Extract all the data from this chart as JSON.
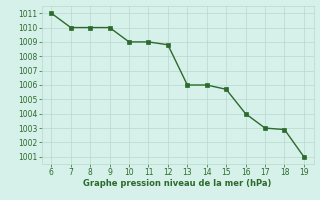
{
  "x": [
    6,
    7,
    8,
    9,
    10,
    11,
    12,
    13,
    14,
    15,
    16,
    17,
    18,
    19
  ],
  "y": [
    1011,
    1010,
    1010,
    1010,
    1009,
    1009,
    1008.8,
    1006,
    1006,
    1005.7,
    1004,
    1003,
    1002.9,
    1001
  ],
  "line_color": "#2d6a2d",
  "bg_color": "#d6f0ea",
  "grid_color": "#b8d8d0",
  "xlabel": "Graphe pression niveau de la mer (hPa)",
  "xlim": [
    5.5,
    19.5
  ],
  "ylim": [
    1000.5,
    1011.5
  ],
  "yticks": [
    1001,
    1002,
    1003,
    1004,
    1005,
    1006,
    1007,
    1008,
    1009,
    1010,
    1011
  ],
  "xticks": [
    6,
    7,
    8,
    9,
    10,
    11,
    12,
    13,
    14,
    15,
    16,
    17,
    18,
    19
  ],
  "tick_fontsize": 5.5,
  "xlabel_fontsize": 6.0,
  "linewidth": 1.0,
  "markersize": 2.5
}
